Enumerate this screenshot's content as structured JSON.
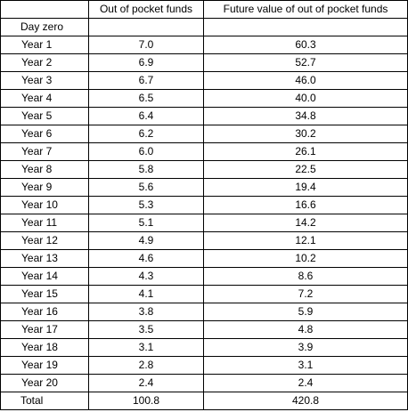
{
  "table": {
    "headers": [
      "",
      "Out of pocket funds",
      "Future value of out of pocket funds"
    ],
    "rows": [
      [
        "Day zero",
        "",
        ""
      ],
      [
        "Year 1",
        "7.0",
        "60.3"
      ],
      [
        "Year 2",
        "6.9",
        "52.7"
      ],
      [
        "Year 3",
        "6.7",
        "46.0"
      ],
      [
        "Year 4",
        "6.5",
        "40.0"
      ],
      [
        "Year 5",
        "6.4",
        "34.8"
      ],
      [
        "Year 6",
        "6.2",
        "30.2"
      ],
      [
        "Year 7",
        "6.0",
        "26.1"
      ],
      [
        "Year 8",
        "5.8",
        "22.5"
      ],
      [
        "Year 9",
        "5.6",
        "19.4"
      ],
      [
        "Year 10",
        "5.3",
        "16.6"
      ],
      [
        "Year 11",
        "5.1",
        "14.2"
      ],
      [
        "Year 12",
        "4.9",
        "12.1"
      ],
      [
        "Year 13",
        "4.6",
        "10.2"
      ],
      [
        "Year 14",
        "4.3",
        "8.6"
      ],
      [
        "Year 15",
        "4.1",
        "7.2"
      ],
      [
        "Year 16",
        "3.8",
        "5.9"
      ],
      [
        "Year 17",
        "3.5",
        "4.8"
      ],
      [
        "Year 18",
        "3.1",
        "3.9"
      ],
      [
        "Year 19",
        "2.8",
        "3.1"
      ],
      [
        "Year 20",
        "2.4",
        "2.4"
      ],
      [
        "Total",
        "100.8",
        "420.8"
      ]
    ]
  }
}
